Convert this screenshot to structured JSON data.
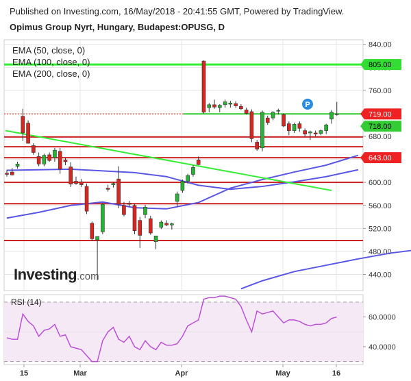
{
  "header": {
    "published": "Published on Investing.com, 16/May/2018 - 20:41:55 GMT, Powered by TradingView.",
    "title": "Opimus Group Nyrt, Hungary, Budapest:OPUSG, D"
  },
  "legend": [
    "EMA (50, close, 0)",
    "EMA (100, close, 0)",
    "EMA (200, close, 0)"
  ],
  "logo": {
    "main": "Investing",
    "suffix": ".com"
  },
  "rsi_title": "RSI (14)",
  "colors": {
    "up": "#27b335",
    "down": "#d9251f",
    "hline": "#ff0000",
    "green_line": "#33ee33",
    "ema": "#5a56e6",
    "rsi": "#bb4fd6",
    "rsi_band": "#f6e9f6"
  },
  "chart_data": [
    {
      "type": "candlestick",
      "ylim": [
        412,
        848
      ],
      "y_ticks": [
        "840.00",
        "800.00",
        "760.00",
        "720.00",
        "680.00",
        "640.00",
        "600.00",
        "560.00",
        "520.00",
        "480.00",
        "440.00"
      ],
      "x_ticks": [
        "15",
        "Mar",
        "Apr",
        "May",
        "16"
      ],
      "price_labels": [
        {
          "text": "805.00",
          "value": 805,
          "color": "#33dd33",
          "text_color": "#000000"
        },
        {
          "text": "719.00",
          "value": 719,
          "color": "#ee2222",
          "text_color": "#ffffff"
        },
        {
          "text": "718.00",
          "value": 718,
          "color": "#33cc33",
          "text_color": "#000000"
        },
        {
          "text": "643.00",
          "value": 643,
          "color": "#ee2222",
          "text_color": "#ffffff"
        }
      ],
      "candles": [
        {
          "o": 616,
          "h": 622,
          "l": 610,
          "c": 614
        },
        {
          "o": 618,
          "h": 625,
          "l": 612,
          "c": 613
        },
        {
          "o": 628,
          "h": 636,
          "l": 624,
          "c": 632
        },
        {
          "o": 715,
          "h": 728,
          "l": 672,
          "c": 686
        },
        {
          "o": 703,
          "h": 708,
          "l": 668,
          "c": 668
        },
        {
          "o": 664,
          "h": 668,
          "l": 648,
          "c": 652
        },
        {
          "o": 645,
          "h": 652,
          "l": 628,
          "c": 632
        },
        {
          "o": 632,
          "h": 650,
          "l": 628,
          "c": 647
        },
        {
          "o": 648,
          "h": 652,
          "l": 636,
          "c": 638
        },
        {
          "o": 643,
          "h": 660,
          "l": 636,
          "c": 656
        },
        {
          "o": 654,
          "h": 660,
          "l": 615,
          "c": 623
        },
        {
          "o": 639,
          "h": 643,
          "l": 630,
          "c": 636
        },
        {
          "o": 627,
          "h": 635,
          "l": 592,
          "c": 597
        },
        {
          "o": 602,
          "h": 610,
          "l": 596,
          "c": 598
        },
        {
          "o": 601,
          "h": 606,
          "l": 592,
          "c": 596
        },
        {
          "o": 593,
          "h": 598,
          "l": 545,
          "c": 550
        },
        {
          "o": 529,
          "h": 532,
          "l": 498,
          "c": 502
        },
        {
          "o": 500,
          "h": 506,
          "l": 430,
          "c": 506
        },
        {
          "o": 514,
          "h": 565,
          "l": 510,
          "c": 562
        },
        {
          "o": 590,
          "h": 596,
          "l": 584,
          "c": 588
        },
        {
          "o": 596,
          "h": 600,
          "l": 591,
          "c": 598
        },
        {
          "o": 606,
          "h": 628,
          "l": 555,
          "c": 562
        },
        {
          "o": 560,
          "h": 566,
          "l": 541,
          "c": 544
        },
        {
          "o": 564,
          "h": 568,
          "l": 558,
          "c": 562
        },
        {
          "o": 560,
          "h": 563,
          "l": 510,
          "c": 516
        },
        {
          "o": 534,
          "h": 540,
          "l": 486,
          "c": 508
        },
        {
          "o": 544,
          "h": 561,
          "l": 538,
          "c": 557
        },
        {
          "o": 537,
          "h": 542,
          "l": 509,
          "c": 512
        },
        {
          "o": 497,
          "h": 504,
          "l": 484,
          "c": 507
        },
        {
          "o": 522,
          "h": 534,
          "l": 519,
          "c": 531
        },
        {
          "o": 529,
          "h": 534,
          "l": 524,
          "c": 526
        },
        {
          "o": 526,
          "h": 530,
          "l": 518,
          "c": 528
        },
        {
          "o": 567,
          "h": 584,
          "l": 558,
          "c": 580
        },
        {
          "o": 586,
          "h": 605,
          "l": 582,
          "c": 602
        },
        {
          "o": 602,
          "h": 615,
          "l": 598,
          "c": 612
        },
        {
          "o": 614,
          "h": 630,
          "l": 610,
          "c": 626
        },
        {
          "o": 639,
          "h": 645,
          "l": 630,
          "c": 631
        },
        {
          "o": 811,
          "h": 812,
          "l": 720,
          "c": 722
        },
        {
          "o": 730,
          "h": 738,
          "l": 722,
          "c": 735
        },
        {
          "o": 735,
          "h": 744,
          "l": 728,
          "c": 731
        },
        {
          "o": 730,
          "h": 736,
          "l": 722,
          "c": 734
        },
        {
          "o": 735,
          "h": 744,
          "l": 730,
          "c": 740
        },
        {
          "o": 736,
          "h": 742,
          "l": 730,
          "c": 738
        },
        {
          "o": 737,
          "h": 741,
          "l": 730,
          "c": 733
        },
        {
          "o": 732,
          "h": 736,
          "l": 726,
          "c": 728
        },
        {
          "o": 726,
          "h": 730,
          "l": 718,
          "c": 720
        },
        {
          "o": 723,
          "h": 727,
          "l": 670,
          "c": 676
        },
        {
          "o": 670,
          "h": 674,
          "l": 655,
          "c": 658
        },
        {
          "o": 660,
          "h": 725,
          "l": 654,
          "c": 722
        },
        {
          "o": 712,
          "h": 716,
          "l": 700,
          "c": 704
        },
        {
          "o": 712,
          "h": 724,
          "l": 708,
          "c": 722
        },
        {
          "o": 724,
          "h": 728,
          "l": 718,
          "c": 725
        },
        {
          "o": 718,
          "h": 720,
          "l": 696,
          "c": 698
        },
        {
          "o": 702,
          "h": 706,
          "l": 682,
          "c": 690
        },
        {
          "o": 690,
          "h": 704,
          "l": 686,
          "c": 701
        },
        {
          "o": 702,
          "h": 706,
          "l": 688,
          "c": 694
        },
        {
          "o": 690,
          "h": 694,
          "l": 680,
          "c": 684
        },
        {
          "o": 686,
          "h": 690,
          "l": 674,
          "c": 688
        },
        {
          "o": 686,
          "h": 690,
          "l": 680,
          "c": 684
        },
        {
          "o": 685,
          "h": 692,
          "l": 682,
          "c": 690
        },
        {
          "o": 690,
          "h": 702,
          "l": 684,
          "c": 700
        },
        {
          "o": 710,
          "h": 726,
          "l": 702,
          "c": 722
        },
        {
          "o": 719,
          "h": 740,
          "l": 716,
          "c": 719
        }
      ],
      "horizontal_lines": [
        {
          "value": 805,
          "color": "#33ee33"
        },
        {
          "value": 679,
          "color": "#cc2222"
        },
        {
          "value": 662,
          "color": "#cc2222"
        },
        {
          "value": 643,
          "color": "#cc2222"
        },
        {
          "value": 600,
          "color": "#cc2222"
        },
        {
          "value": 563,
          "color": "#cc2222"
        },
        {
          "value": 499,
          "color": "#cc2222"
        }
      ],
      "trendline": {
        "from": [
          0,
          690
        ],
        "to": [
          61,
          586
        ],
        "color": "#33ee33"
      },
      "ema_series": [
        {
          "name": "EMA (50, close, 0)",
          "points": [
            [
              0,
              538
            ],
            [
              6,
              548
            ],
            [
              12,
              560
            ],
            [
              18,
              566
            ],
            [
              24,
              556
            ],
            [
              30,
              554
            ],
            [
              36,
              565
            ],
            [
              42,
              590
            ],
            [
              48,
              605
            ],
            [
              54,
              618
            ],
            [
              60,
              630
            ],
            [
              66,
              647
            ]
          ]
        },
        {
          "name": "EMA (100, close, 0)",
          "points": [
            [
              0,
              621
            ],
            [
              6,
              622
            ],
            [
              12,
              623
            ],
            [
              18,
              620
            ],
            [
              24,
              617
            ],
            [
              30,
              610
            ],
            [
              36,
              595
            ],
            [
              42,
              588
            ],
            [
              48,
              593
            ],
            [
              54,
              601
            ],
            [
              60,
              610
            ],
            [
              66,
              622
            ]
          ]
        },
        {
          "name": "EMA (200, close, 0)",
          "points": [
            [
              44,
              415
            ],
            [
              48,
              429
            ],
            [
              54,
              445
            ],
            [
              60,
              456
            ],
            [
              66,
              467
            ],
            [
              72,
              477
            ],
            [
              78,
              484
            ]
          ]
        }
      ]
    },
    {
      "type": "line",
      "title": "RSI (14)",
      "ylim": [
        28,
        75
      ],
      "y_ticks": [
        "60.0000",
        "40.0000"
      ],
      "band": [
        30,
        70
      ],
      "values": [
        46,
        45,
        45,
        62,
        57,
        54,
        47,
        51,
        52,
        55,
        47,
        48,
        40,
        39,
        38,
        34,
        30,
        30,
        44,
        50,
        53,
        45,
        43,
        47,
        40,
        38,
        44,
        40,
        38,
        43,
        41,
        41,
        42,
        47,
        54,
        56,
        58,
        72,
        73,
        73,
        74,
        74,
        73,
        72,
        67,
        58,
        50,
        64,
        62,
        63,
        64,
        60,
        56,
        58,
        58,
        57,
        55,
        54,
        55,
        55,
        56,
        59,
        60
      ]
    }
  ]
}
